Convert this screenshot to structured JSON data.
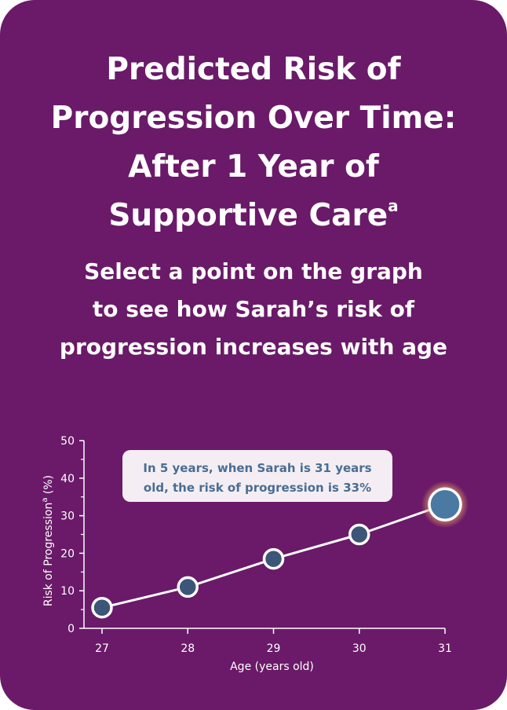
{
  "title": {
    "lines": [
      "Predicted Risk of",
      "Progression Over Time:",
      "After 1 Year of",
      "Supportive Care"
    ],
    "superscript": "a"
  },
  "subtitle": {
    "lines": [
      "Select a point on the graph",
      "to see how Sarah’s risk of",
      "progression increases with age"
    ]
  },
  "chart_data": {
    "type": "line",
    "x": [
      27,
      28,
      29,
      30,
      31
    ],
    "values": [
      5.5,
      11,
      18.5,
      25,
      33
    ],
    "xlabel": "Age (years old)",
    "ylabel": "Risk of Progression",
    "ylabel_superscript": "a",
    "ylabel_unit": "(%)",
    "ylim": [
      0,
      50
    ],
    "yticks": [
      0,
      10,
      20,
      30,
      40,
      50
    ],
    "xticks": [
      27,
      28,
      29,
      30,
      31
    ],
    "selected_index": 4,
    "tooltip": {
      "lines": [
        "In 5 years, when Sarah is 31 years",
        "old, the risk of progression is 33%"
      ]
    },
    "colors": {
      "background": "#6a1a68",
      "line": "#ffffff",
      "point_fill": "#3c5579",
      "point_selected_fill": "#4a7aa2",
      "point_stroke": "#ffffff",
      "glow": "#e8a060",
      "tooltip_bg": "#f4eef4",
      "tooltip_text": "#4a6d92"
    }
  }
}
